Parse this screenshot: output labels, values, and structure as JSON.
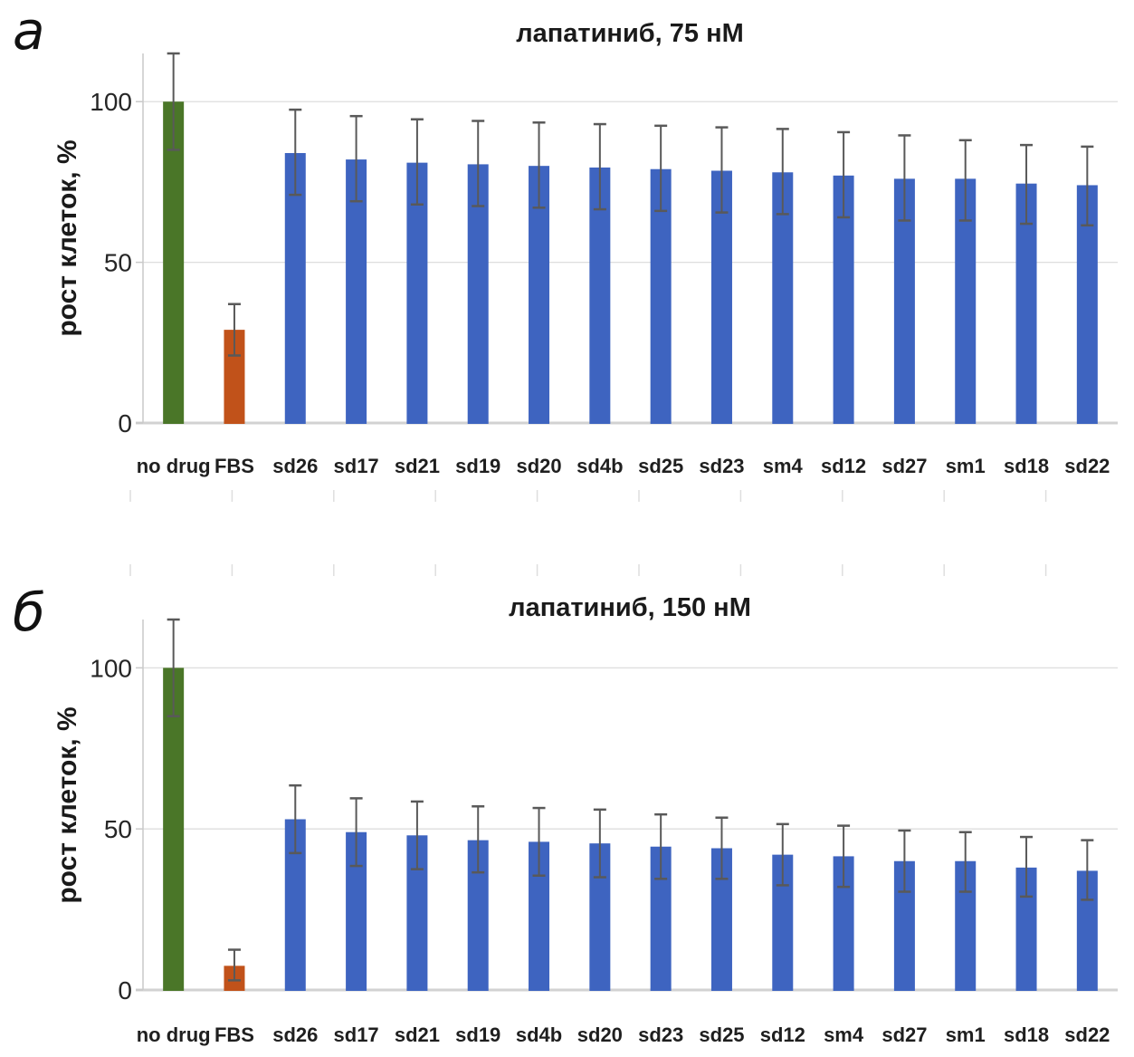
{
  "figure": {
    "panels": [
      {
        "letter": "а"
      },
      {
        "letter": "б"
      }
    ]
  },
  "palette": {
    "control_green": "#4a7628",
    "fbs_orange": "#c1521a",
    "aptamer_blue": "#3e64c0",
    "gridline_gray": "#dedede",
    "baseline_gray": "#d2d2d2",
    "axis_gray": "#c9c9c9",
    "error_bar_gray": "#595959"
  },
  "chart_data": [
    {
      "type": "bar",
      "title": "лапатиниб, 75 нМ",
      "xlabel": "",
      "ylabel": "рост клеток, %",
      "yticks": [
        0,
        50,
        100
      ],
      "ylim": [
        0,
        115
      ],
      "grid": "horizontal",
      "legend": "none",
      "bar_color_rule": {
        "index0": "control_green",
        "index1": "fbs_orange",
        "default": "aptamer_blue"
      },
      "categories": [
        "no drug",
        "FBS",
        "sd26",
        "sd17",
        "sd21",
        "sd19",
        "sd20",
        "sd4b",
        "sd25",
        "sd23",
        "sm4",
        "sd12",
        "sd27",
        "sm1",
        "sd18",
        "sd22"
      ],
      "values": [
        100,
        29,
        84,
        82,
        81,
        80.5,
        80,
        79.5,
        79,
        78.5,
        78,
        77,
        76,
        76,
        74.5,
        74
      ],
      "error_high": [
        115,
        37,
        97.5,
        95.5,
        94.5,
        94,
        93.5,
        93,
        92.5,
        92,
        91.5,
        90.5,
        89.5,
        88,
        86.5,
        86
      ],
      "error_low": [
        85,
        21,
        71,
        69,
        68,
        67.5,
        67,
        66.5,
        66,
        65.5,
        65,
        64,
        63,
        63,
        62,
        61.5
      ]
    },
    {
      "type": "bar",
      "title": "лапатиниб, 150 нМ",
      "xlabel": "",
      "ylabel": "рост клеток, %",
      "yticks": [
        0,
        50,
        100
      ],
      "ylim": [
        0,
        115
      ],
      "grid": "horizontal",
      "legend": "none",
      "bar_color_rule": {
        "index0": "control_green",
        "index1": "fbs_orange",
        "default": "aptamer_blue"
      },
      "categories": [
        "no drug",
        "FBS",
        "sd26",
        "sd17",
        "sd21",
        "sd19",
        "sd4b",
        "sd20",
        "sd23",
        "sd25",
        "sd12",
        "sm4",
        "sd27",
        "sm1",
        "sd18",
        "sd22"
      ],
      "values": [
        100,
        7.5,
        53,
        49,
        48,
        46.5,
        46,
        45.5,
        44.5,
        44,
        42,
        41.5,
        40,
        40,
        38,
        37
      ],
      "error_high": [
        115,
        12.5,
        63.5,
        59.5,
        58.5,
        57,
        56.5,
        56,
        54.5,
        53.5,
        51.5,
        51,
        49.5,
        49,
        47.5,
        46.5
      ],
      "error_low": [
        85,
        3,
        42.5,
        38.5,
        37.5,
        36.5,
        35.5,
        35,
        34.5,
        34.5,
        32.5,
        32,
        30.5,
        30.5,
        29,
        28
      ]
    }
  ]
}
